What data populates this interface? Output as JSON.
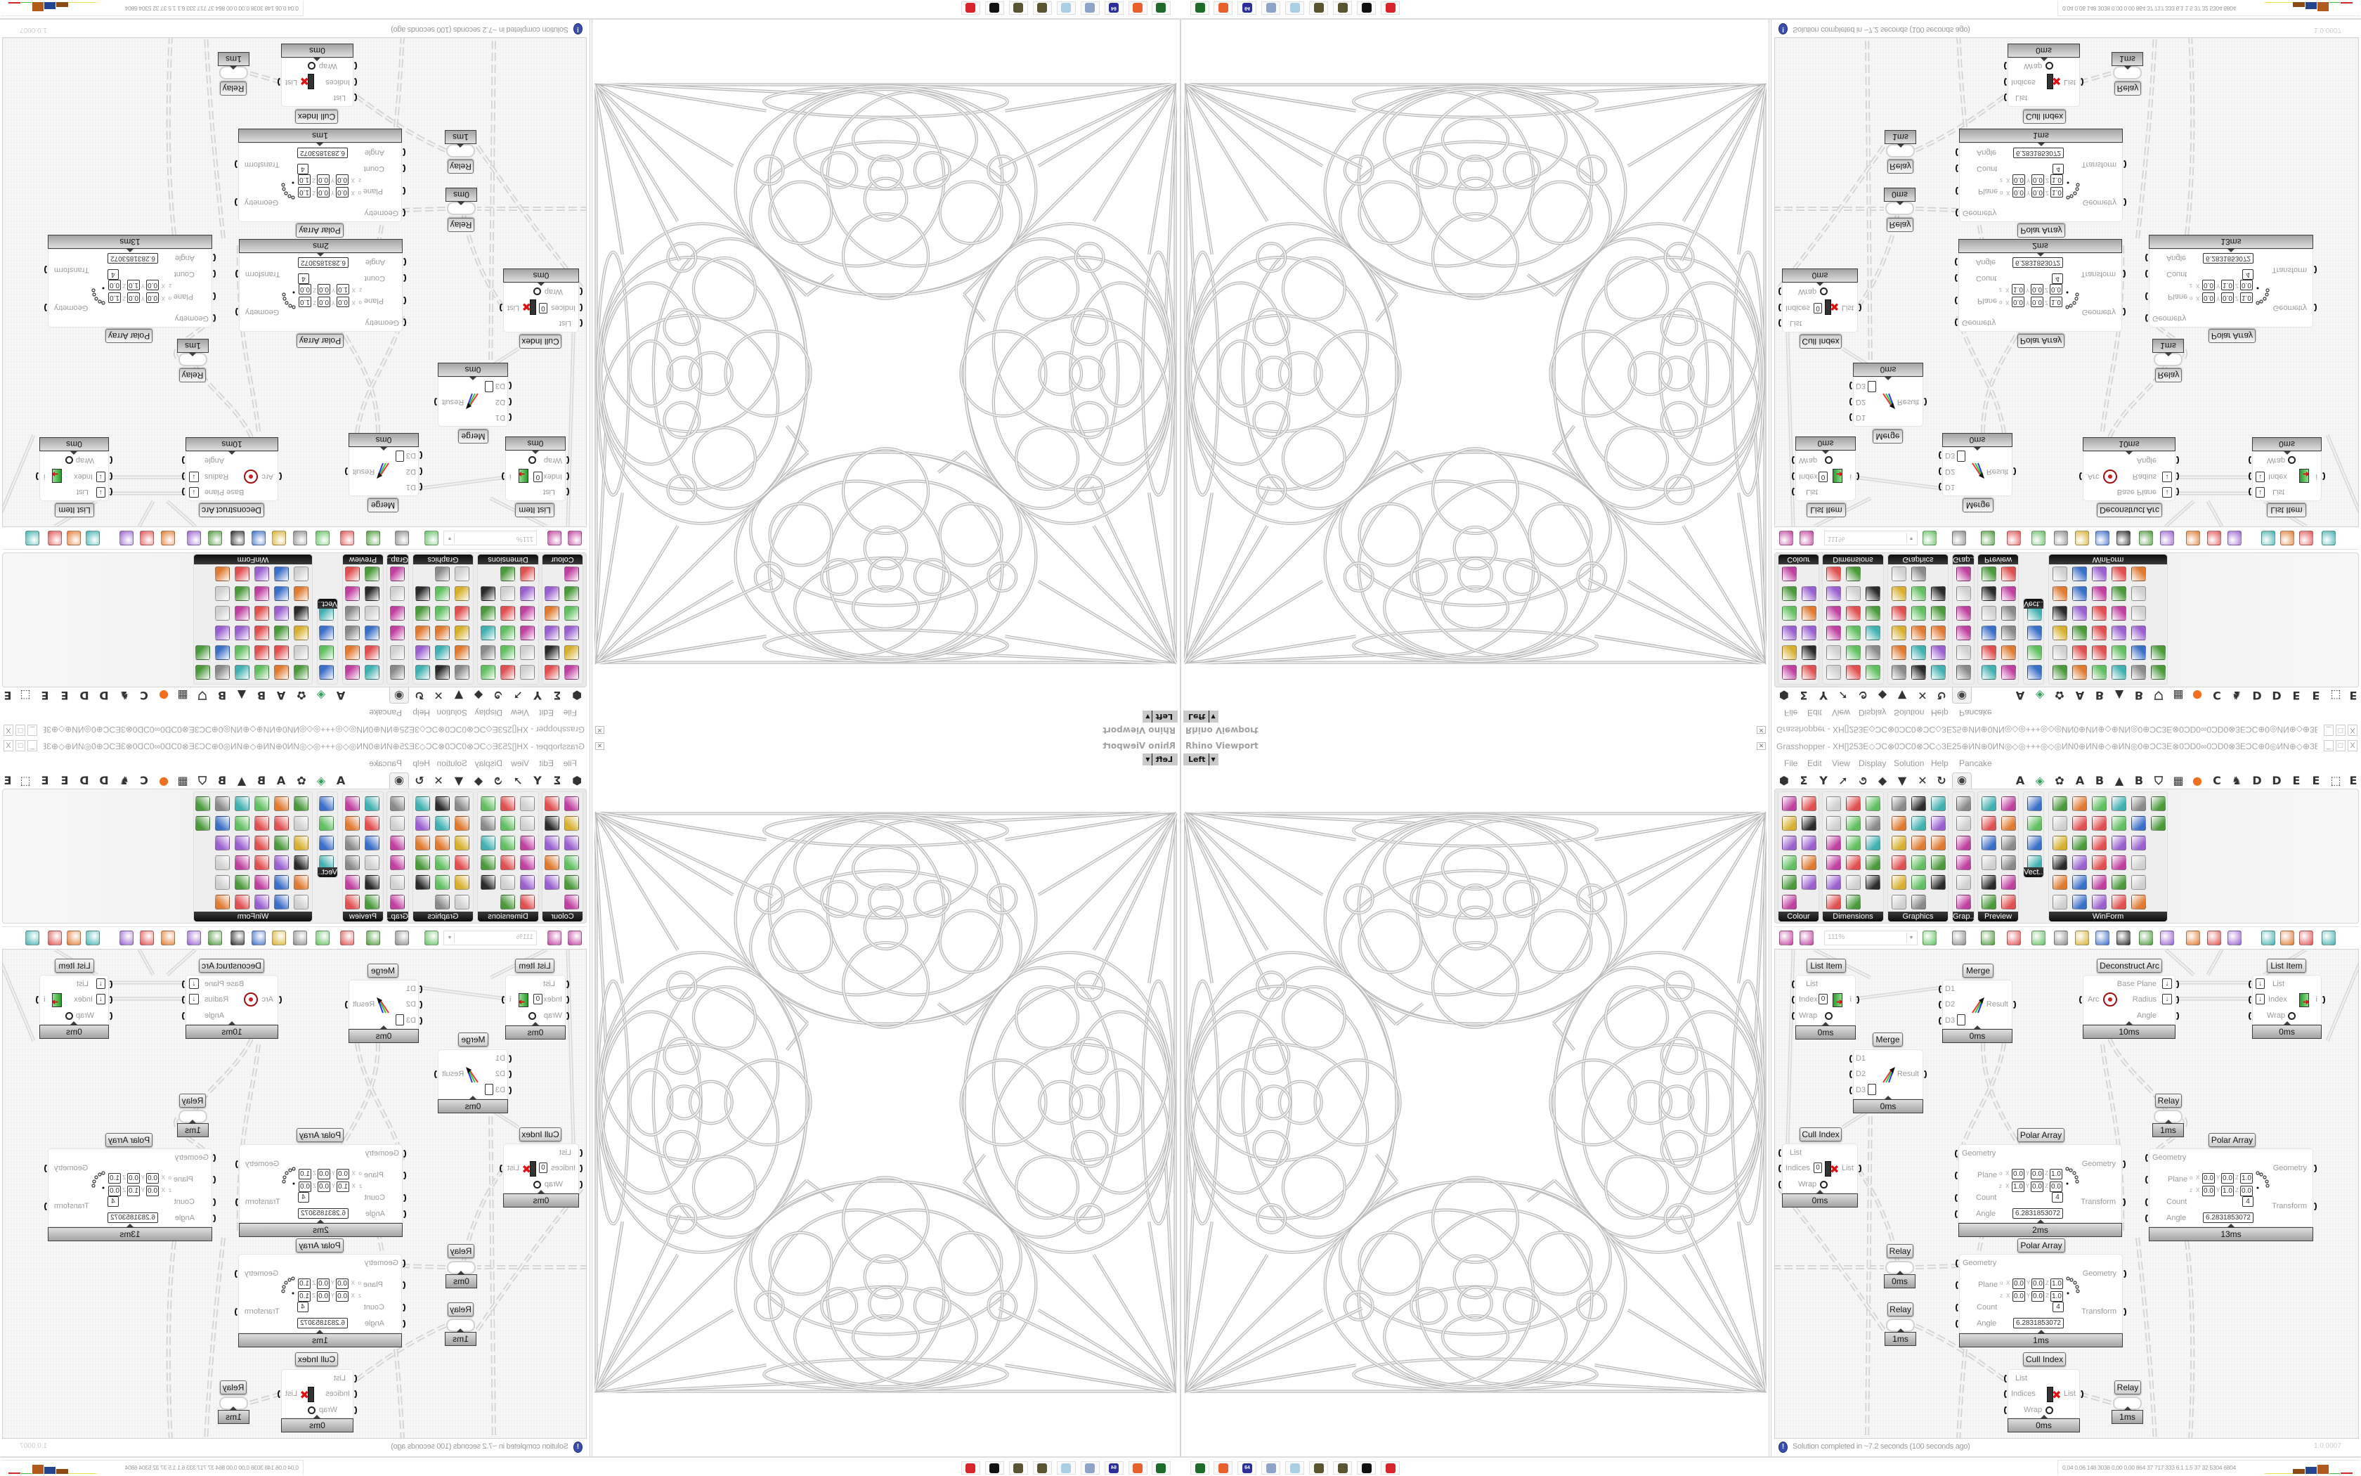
{
  "viewport": {
    "title": "Rhino Viewport",
    "view": "Left"
  },
  "gh": {
    "title": "Grasshopper - XH[]253E◇ƆC⊗0ƆC0⊗ƆC◇3E25⊕ИN⊕0ИN◎◇◎+++◎◇◎ИN0⊕ИN⊕◇⊕ИN◎0⊕ƆC3E⊗0ƆD0∞0ƆD0⊗3EƆC⊕0◎ИN⊕◇⊕3E⊗3E⊞+25+⊞3E⊗3E⊕◇⊕ƆC3E⊕+ƆC...",
    "menu": [
      "File",
      "Edit",
      "View",
      "Display",
      "Solution",
      "Help",
      "Pancake"
    ],
    "tabs": [
      {
        "icon": "params-hex-icon",
        "text": ""
      },
      {
        "icon": "maths-sigma-icon",
        "text": ""
      },
      {
        "icon": "sets-icon",
        "text": ""
      },
      {
        "icon": "vector-arrow-icon",
        "text": ""
      },
      {
        "icon": "curve-icon",
        "text": ""
      },
      {
        "icon": "surface-icon",
        "text": ""
      },
      {
        "icon": "mesh-icon",
        "text": ""
      },
      {
        "icon": "intersect-icon",
        "text": ""
      },
      {
        "icon": "transform-icon",
        "text": ""
      },
      {
        "icon": "display-eye-icon",
        "text": "",
        "active": true
      },
      {
        "icon": "letter-tab-icon",
        "text": "A"
      },
      {
        "icon": "leaf-icon",
        "text": ""
      },
      {
        "icon": "gear-icon",
        "text": ""
      },
      {
        "icon": "letter-tab-icon",
        "text": "A"
      },
      {
        "icon": "letter-tab-icon",
        "text": "B"
      },
      {
        "icon": "mountain-icon",
        "text": ""
      },
      {
        "icon": "letter-tab-icon",
        "text": "B"
      },
      {
        "icon": "shield-icon",
        "text": ""
      },
      {
        "icon": "grid-icon",
        "text": ""
      },
      {
        "icon": "orange-dot-icon",
        "text": ""
      },
      {
        "icon": "letter-tab-icon",
        "text": "C"
      },
      {
        "icon": "rooster-icon",
        "text": ""
      },
      {
        "icon": "letter-tab-icon",
        "text": "D"
      },
      {
        "icon": "letter-tab-icon",
        "text": "D"
      },
      {
        "icon": "letter-tab-icon",
        "text": "E"
      },
      {
        "icon": "letter-tab-icon",
        "text": "E"
      },
      {
        "icon": "dotted-square-icon",
        "text": ""
      },
      {
        "icon": "letter-tab-icon",
        "text": "E"
      }
    ],
    "palette": {
      "groups": [
        {
          "label": "Colour",
          "icons": [
            "color-wheel",
            "gradient",
            "color-cube",
            "color-triangle",
            "color-box",
            "hsl",
            "color-sphere",
            "hsv",
            "red-sphere",
            "prism",
            "gradient-swatch"
          ]
        },
        {
          "label": "Dimensions",
          "icons": [
            "tag-delete",
            "dimension-linear",
            "dimension-angular",
            "tag",
            "dimension-line",
            "dimension-box",
            "magenta-square",
            "dimension-ordinate",
            "dimension-extension",
            "grid-hatch",
            "dimension-angle",
            "dimension-aligned",
            "leader",
            "dimension-radial",
            "dimension-arrow",
            "dimension-diagonal",
            "warning-triangle"
          ]
        },
        {
          "label": "Graphics",
          "icons": [
            "circle-gray",
            "font-t",
            "eye-ring",
            "dotted-circle",
            "font-t-bold",
            "rounded-square",
            "blur-dot",
            "list-circle",
            "asterisk-circle",
            "ring",
            "link-circle",
            "disk-save",
            "sphere-gray",
            "dotted-ring",
            "disk-asterisk",
            "sphere-dark",
            "mountain-circle"
          ]
        },
        {
          "label": "Grap...",
          "icons": [
            "histogram",
            "gradient-bar",
            "pie-ring",
            "line-graph",
            "image-stack",
            "line-chart"
          ]
        },
        {
          "label": "Preview",
          "icons": [
            "gradient-egg",
            "camera",
            "sphere-preview",
            "landscape",
            "blobs",
            "heart-mesh",
            "blobs-red",
            "heart-green",
            "gradient-square",
            "hearts",
            "text-sl",
            "image-tree"
          ]
        },
        {
          "label": "Vect...",
          "icons": [
            "number-sort",
            "path-points",
            "arrows-red",
            "arrows-green"
          ]
        },
        {
          "label": "WinForm",
          "icons": [
            "text-a",
            "list-form",
            "text-lines",
            "label",
            "chart-area",
            "grid-dark",
            "hatch-green",
            "slider-h",
            "slider-handle",
            "grid-yellow",
            "pie-face",
            "panel-yellow",
            "checkbox",
            "text-align",
            "image-tree",
            "pie-chart",
            "person",
            "",
            "combo",
            "numeric",
            "tree-box",
            "split-arrows",
            "text-a-plus",
            "",
            "ok-button",
            "numeric-2",
            "bar-green",
            "list-dots",
            "panel-green",
            "",
            "calendar",
            "slider-v",
            "progress",
            "bar-chart",
            "bar-arrow",
            ""
          ]
        }
      ]
    },
    "toolbar": {
      "zoom": "111%",
      "icons": [
        "new-file",
        "save",
        "zoom-extents",
        "preview-eye",
        "sketch-brush",
        "bug-cable",
        "at-sign",
        "gha",
        "document-view",
        "search-s",
        "package",
        "bulb",
        "cross-wires",
        "gray-shape",
        "ring-shape",
        "red-cube",
        "teal-shape",
        "green-shape",
        "orange-sphere",
        "blue-sphere"
      ]
    },
    "canvas": {
      "axis_labels": [
        "X",
        "Y",
        "Z"
      ],
      "nodes": [
        {
          "title": "List Item",
          "time": "0ms",
          "inputs": [
            {
              "label": "List"
            },
            {
              "label": "Index",
              "value": "0"
            },
            {
              "label": "Wrap"
            }
          ],
          "outputs": [
            {
              "label": "i"
            }
          ]
        },
        {
          "title": "Merge",
          "time": "0ms",
          "inputs": [
            {
              "label": "D1"
            },
            {
              "label": "D2"
            },
            {
              "label": "D3"
            }
          ],
          "outputs": [
            {
              "label": "Result"
            }
          ]
        },
        {
          "title": "Deconstruct Arc",
          "time": "10ms",
          "inputs": [
            {
              "label": "Arc"
            }
          ],
          "outputs": [
            {
              "label": "Base Plane"
            },
            {
              "label": "Radius"
            },
            {
              "label": "Angle"
            }
          ]
        },
        {
          "title": "List Item",
          "time": "0ms",
          "inputs": [
            {
              "label": "List"
            },
            {
              "label": "Index"
            },
            {
              "label": "Wrap"
            }
          ],
          "outputs": [
            {
              "label": "i"
            }
          ]
        },
        {
          "title": "Merge",
          "time": "0ms",
          "inputs": [
            {
              "label": "D1"
            },
            {
              "label": "D2"
            },
            {
              "label": "D3"
            }
          ],
          "outputs": [
            {
              "label": "Result"
            }
          ]
        },
        {
          "title": "Relay",
          "time": "1ms"
        },
        {
          "title": "Cull Index",
          "time": "0ms",
          "inputs": [
            {
              "label": "List"
            },
            {
              "label": "Indices",
              "value": "0"
            },
            {
              "label": "Wrap"
            }
          ],
          "outputs": [
            {
              "label": "List"
            }
          ]
        },
        {
          "title": "Polar Array",
          "time": "2ms",
          "inputs": [
            {
              "label": "Geometry"
            },
            {
              "label": "Plane",
              "plane": [
                {
                  "name": "o",
                  "x": "0.0",
                  "y": "0.0",
                  "z": "1.0"
                },
                {
                  "name": "z",
                  "x": "1.0",
                  "y": "0.0",
                  "z": "0.0"
                }
              ]
            },
            {
              "label": "Count",
              "value": "4"
            },
            {
              "label": "Angle",
              "value": "6.2831853072"
            }
          ],
          "outputs": [
            {
              "label": "Geometry"
            },
            {
              "label": "Transform"
            }
          ]
        },
        {
          "title": "Polar Array",
          "time": "13ms",
          "inputs": [
            {
              "label": "Geometry"
            },
            {
              "label": "Plane",
              "plane": [
                {
                  "name": "o",
                  "x": "0.0",
                  "y": "0.0",
                  "z": "1.0"
                },
                {
                  "name": "z",
                  "x": "0.0",
                  "y": "1.0",
                  "z": "0.0"
                }
              ]
            },
            {
              "label": "Count",
              "value": "4"
            },
            {
              "label": "Angle",
              "value": "6.2831853072"
            }
          ],
          "outputs": [
            {
              "label": "Geometry"
            },
            {
              "label": "Transform"
            }
          ]
        },
        {
          "title": "Polar Array",
          "time": "1ms",
          "inputs": [
            {
              "label": "Geometry"
            },
            {
              "label": "Plane",
              "plane": [
                {
                  "name": "o",
                  "x": "0.0",
                  "y": "0.0",
                  "z": "1.0"
                },
                {
                  "name": "z",
                  "x": "0.0",
                  "y": "0.0",
                  "z": "1.0"
                }
              ]
            },
            {
              "label": "Count",
              "value": "4"
            },
            {
              "label": "Angle",
              "value": "6.2831853072"
            }
          ],
          "outputs": [
            {
              "label": "Geometry"
            },
            {
              "label": "Transform"
            }
          ]
        },
        {
          "title": "Relay",
          "time": "0ms"
        },
        {
          "title": "Relay",
          "time": "1ms"
        },
        {
          "title": "Cull Index",
          "time": "0ms",
          "inputs": [
            {
              "label": "List"
            },
            {
              "label": "Indices"
            },
            {
              "label": "Wrap"
            }
          ],
          "outputs": [
            {
              "label": "List"
            }
          ]
        },
        {
          "title": "Relay",
          "time": "1ms"
        }
      ]
    },
    "status": {
      "message": "Solution completed in ~7.2 seconds (100 seconds ago)",
      "version": "1.0.0007"
    }
  },
  "taskbar": {
    "icons": [
      {
        "name": "terminal-app",
        "color": "#1f6b2a",
        "text": ""
      },
      {
        "name": "firefox",
        "color": "#e8612c",
        "text": ""
      },
      {
        "name": "floppy-app",
        "color": "#2b2f9a",
        "text": "64"
      },
      {
        "name": "notepad-app",
        "color": "#8ea3c8",
        "text": ""
      },
      {
        "name": "notepad-app-2",
        "color": "#a9cfe6",
        "text": ""
      },
      {
        "name": "gear-app",
        "color": "#5a5430",
        "text": ""
      },
      {
        "name": "gear-app-2",
        "color": "#5a5430",
        "text": ""
      },
      {
        "name": "inkscape-app",
        "color": "#111111",
        "text": ""
      },
      {
        "name": "red-app",
        "color": "#d7262b",
        "text": ""
      }
    ],
    "perf": {
      "values": "0.04 0.06 148 3038 0.00 0.00 864 37 717 333 6.1 1.5 37 32 5304 6804",
      "bar_colors": [
        "#e8e04a",
        "#8a4a14",
        "#23458f",
        "#b05a1c",
        "#43c043",
        "#d22a2a"
      ]
    }
  }
}
